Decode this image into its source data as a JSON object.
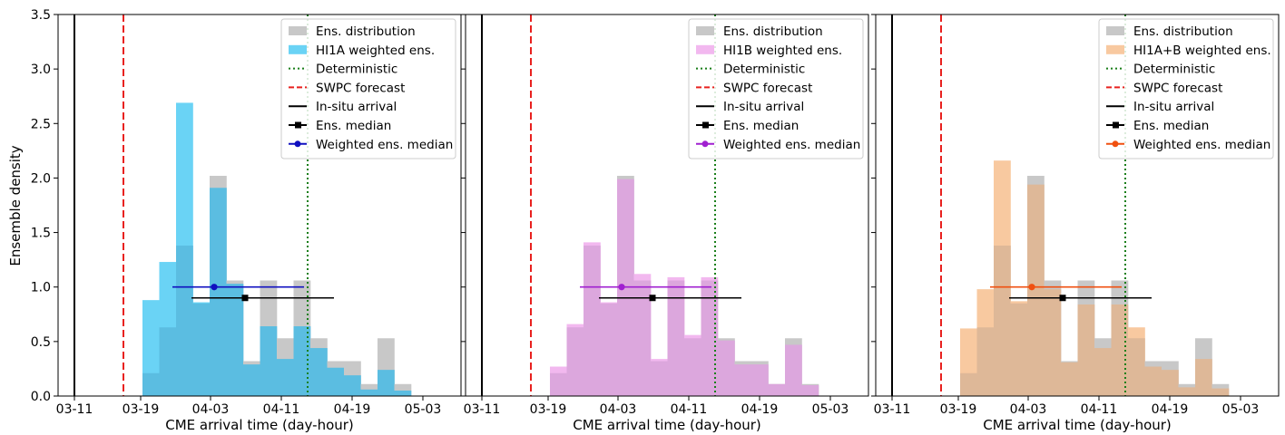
{
  "figure": {
    "ylabel": "Ensemble density"
  },
  "chart_data": [
    {
      "type": "bar",
      "panel": "HI1A",
      "xlabel": "CME arrival time (day-hour)",
      "ylabel": "Ensemble density",
      "ylim": [
        0,
        3.5
      ],
      "yticks": [
        "0.0",
        "0.5",
        "1.0",
        "1.5",
        "2.0",
        "2.5",
        "3.0",
        "3.5"
      ],
      "xticks": [
        "03-11",
        "03-19",
        "04-03",
        "04-11",
        "04-19",
        "05-03"
      ],
      "legend_position": "top-right",
      "legend": [
        {
          "label": "Ens. distribution",
          "kind": "patch",
          "color": "#c8c8c8"
        },
        {
          "label": "HI1A weighted  ens.",
          "kind": "patch",
          "color": "#6ad3f5"
        },
        {
          "label": "Deterministic",
          "kind": "dotted",
          "color": "#1a7f1a"
        },
        {
          "label": "SWPC forecast",
          "kind": "dashed",
          "color": "#e8211f"
        },
        {
          "label": "In-situ arrival",
          "kind": "line",
          "color": "#000000"
        },
        {
          "label": "Ens. median",
          "kind": "square-marker",
          "color": "#000000"
        },
        {
          "label": "Weighted ens. median",
          "kind": "dot-marker",
          "color": "#1010c0"
        }
      ],
      "colors": {
        "ens": "#c8c8c8",
        "weighted": "#6ad3f5",
        "overlap": "#5bbde1",
        "median_line": "#1010c0"
      },
      "bins": [
        "b1",
        "b2",
        "b3",
        "b4",
        "b5",
        "b6",
        "b7",
        "b8",
        "b9",
        "b10",
        "b11",
        "b12",
        "b13",
        "b14",
        "b15",
        "b16",
        "b17"
      ],
      "series": [
        {
          "name": "Ens. distribution",
          "values": [
            0.21,
            0.63,
            1.38,
            0.85,
            2.02,
            1.06,
            0.32,
            1.06,
            0.53,
            1.06,
            0.53,
            0.32,
            0.32,
            0.11,
            0.53,
            0.11,
            0.0
          ]
        },
        {
          "name": "HI1A weighted  ens.",
          "values": [
            0.88,
            1.23,
            2.69,
            0.86,
            1.91,
            1.03,
            0.29,
            0.64,
            0.34,
            0.64,
            0.44,
            0.26,
            0.19,
            0.06,
            0.24,
            0.05,
            0.0
          ]
        }
      ],
      "in_situ_arrival": "03-11",
      "swpc_forecast_position": "between 03-11 and 03-19",
      "deterministic_position": "between 04-11 and 04-19",
      "ens_median": {
        "y": 0.9,
        "x_interval": "between 04-03 and 04-11"
      },
      "weighted_ens_median": {
        "y": 1.0,
        "x_interval": "near 04-03"
      }
    },
    {
      "type": "bar",
      "panel": "HI1B",
      "xlabel": "CME arrival time (day-hour)",
      "ylim": [
        0,
        3.5
      ],
      "xticks": [
        "03-11",
        "03-19",
        "04-03",
        "04-11",
        "04-19",
        "05-03"
      ],
      "legend_position": "top-right",
      "legend": [
        {
          "label": "Ens. distribution",
          "kind": "patch",
          "color": "#c8c8c8"
        },
        {
          "label": "HI1B weighted  ens.",
          "kind": "patch",
          "color": "#f2b8ef"
        },
        {
          "label": "Deterministic",
          "kind": "dotted",
          "color": "#1a7f1a"
        },
        {
          "label": "SWPC forecast",
          "kind": "dashed",
          "color": "#e8211f"
        },
        {
          "label": "In-situ arrival",
          "kind": "line",
          "color": "#000000"
        },
        {
          "label": "Ens. median",
          "kind": "square-marker",
          "color": "#000000"
        },
        {
          "label": "Weighted ens. median",
          "kind": "dot-marker",
          "color": "#a020d0"
        }
      ],
      "colors": {
        "ens": "#c8c8c8",
        "weighted": "#f2b8ef",
        "overlap": "#dca7dd",
        "median_line": "#a020d0"
      },
      "bins": [
        "b1",
        "b2",
        "b3",
        "b4",
        "b5",
        "b6",
        "b7",
        "b8",
        "b9",
        "b10",
        "b11",
        "b12",
        "b13",
        "b14",
        "b15",
        "b16",
        "b17"
      ],
      "series": [
        {
          "name": "Ens. distribution",
          "values": [
            0.21,
            0.63,
            1.38,
            0.85,
            2.02,
            1.06,
            0.32,
            1.06,
            0.53,
            1.06,
            0.53,
            0.32,
            0.32,
            0.11,
            0.53,
            0.11,
            0.0
          ]
        },
        {
          "name": "HI1B weighted  ens.",
          "values": [
            0.27,
            0.66,
            1.41,
            0.86,
            1.99,
            1.12,
            0.34,
            1.09,
            0.56,
            1.09,
            0.51,
            0.29,
            0.29,
            0.11,
            0.47,
            0.1,
            0.0
          ]
        }
      ],
      "in_situ_arrival": "03-11",
      "swpc_forecast_position": "between 03-11 and 03-19",
      "deterministic_position": "between 04-11 and 04-19",
      "ens_median": {
        "y": 0.9,
        "x_interval": "between 04-03 and 04-11"
      },
      "weighted_ens_median": {
        "y": 1.0,
        "x_interval": "between 04-03 and 04-11"
      }
    },
    {
      "type": "bar",
      "panel": "HI1A+B",
      "xlabel": "CME arrival time (day-hour)",
      "ylim": [
        0,
        3.5
      ],
      "xticks": [
        "03-11",
        "03-19",
        "04-03",
        "04-11",
        "04-19",
        "05-03"
      ],
      "legend_position": "top-right",
      "legend": [
        {
          "label": "Ens. distribution",
          "kind": "patch",
          "color": "#c8c8c8"
        },
        {
          "label": "HI1A+B weighted  ens.",
          "kind": "patch",
          "color": "#f8c9a0"
        },
        {
          "label": "Deterministic",
          "kind": "dotted",
          "color": "#1a7f1a"
        },
        {
          "label": "SWPC forecast",
          "kind": "dashed",
          "color": "#e8211f"
        },
        {
          "label": "In-situ arrival",
          "kind": "line",
          "color": "#000000"
        },
        {
          "label": "Ens. median",
          "kind": "square-marker",
          "color": "#000000"
        },
        {
          "label": "Weighted ens. median",
          "kind": "dot-marker",
          "color": "#f05010"
        }
      ],
      "colors": {
        "ens": "#c8c8c8",
        "weighted": "#f8c9a0",
        "overlap": "#deb898",
        "median_line": "#f05010"
      },
      "bins": [
        "b1",
        "b2",
        "b3",
        "b4",
        "b5",
        "b6",
        "b7",
        "b8",
        "b9",
        "b10",
        "b11",
        "b12",
        "b13",
        "b14",
        "b15",
        "b16",
        "b17"
      ],
      "series": [
        {
          "name": "Ens. distribution",
          "values": [
            0.21,
            0.63,
            1.38,
            0.85,
            2.02,
            1.06,
            0.32,
            1.06,
            0.53,
            1.06,
            0.53,
            0.32,
            0.32,
            0.11,
            0.53,
            0.11,
            0.0
          ]
        },
        {
          "name": "HI1A+B weighted  ens.",
          "values": [
            0.62,
            0.98,
            2.16,
            0.87,
            1.94,
            0.98,
            0.31,
            0.84,
            0.44,
            0.84,
            0.63,
            0.27,
            0.24,
            0.08,
            0.34,
            0.07,
            0.0
          ]
        }
      ],
      "in_situ_arrival": "03-11",
      "swpc_forecast_position": "between 03-11 and 03-19",
      "deterministic_position": "between 04-11 and 04-19",
      "ens_median": {
        "y": 0.9,
        "x_interval": "between 04-03 and 04-11"
      },
      "weighted_ens_median": {
        "y": 1.0,
        "x_interval": "near 04-03"
      }
    }
  ]
}
